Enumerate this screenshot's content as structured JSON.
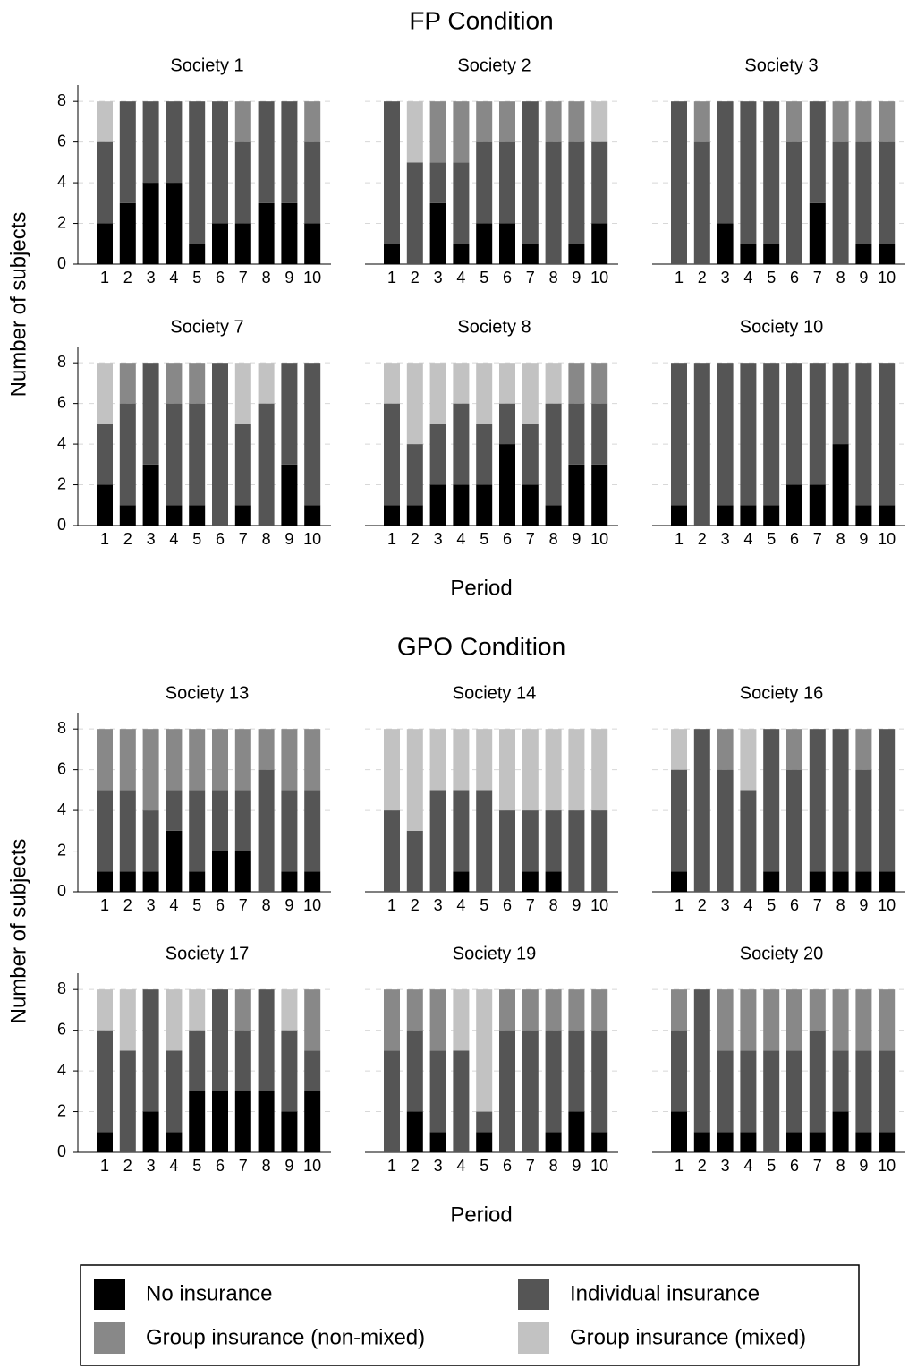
{
  "chart_data": [
    {
      "type": "bar",
      "stacked": true,
      "title": "Society 1",
      "categories": [
        1,
        2,
        3,
        4,
        5,
        6,
        7,
        8,
        9,
        10
      ],
      "series": [
        {
          "values": [
            2,
            3,
            4,
            4,
            1,
            2,
            2,
            3,
            3,
            2
          ]
        },
        {
          "values": [
            4,
            5,
            4,
            4,
            7,
            6,
            4,
            5,
            5,
            4
          ]
        },
        {
          "values": [
            0,
            0,
            0,
            0,
            0,
            0,
            2,
            0,
            0,
            2
          ]
        },
        {
          "values": [
            2,
            0,
            0,
            0,
            0,
            0,
            0,
            0,
            0,
            0
          ]
        }
      ],
      "ylim": [
        0,
        8.8
      ],
      "yticks": [
        0,
        2,
        4,
        6,
        8
      ],
      "grid": true
    },
    {
      "type": "bar",
      "stacked": true,
      "title": "Society 2",
      "categories": [
        1,
        2,
        3,
        4,
        5,
        6,
        7,
        8,
        9,
        10
      ],
      "series": [
        {
          "values": [
            1,
            0,
            3,
            1,
            2,
            2,
            1,
            0,
            1,
            2
          ]
        },
        {
          "values": [
            7,
            5,
            2,
            4,
            4,
            4,
            7,
            6,
            5,
            4
          ]
        },
        {
          "values": [
            0,
            0,
            3,
            3,
            2,
            2,
            0,
            2,
            2,
            0
          ]
        },
        {
          "values": [
            0,
            3,
            0,
            0,
            0,
            0,
            0,
            0,
            0,
            2
          ]
        }
      ],
      "ylim": [
        0,
        8.8
      ],
      "yticks": [
        0,
        2,
        4,
        6,
        8
      ],
      "grid": true
    },
    {
      "type": "bar",
      "stacked": true,
      "title": "Society 3",
      "categories": [
        1,
        2,
        3,
        4,
        5,
        6,
        7,
        8,
        9,
        10
      ],
      "series": [
        {
          "values": [
            0,
            0,
            2,
            1,
            1,
            0,
            3,
            0,
            1,
            1
          ]
        },
        {
          "values": [
            8,
            6,
            6,
            7,
            7,
            6,
            5,
            6,
            5,
            5
          ]
        },
        {
          "values": [
            0,
            2,
            0,
            0,
            0,
            2,
            0,
            2,
            2,
            2
          ]
        },
        {
          "values": [
            0,
            0,
            0,
            0,
            0,
            0,
            0,
            0,
            0,
            0
          ]
        }
      ],
      "ylim": [
        0,
        8.8
      ],
      "yticks": [
        0,
        2,
        4,
        6,
        8
      ],
      "grid": true
    },
    {
      "type": "bar",
      "stacked": true,
      "title": "Society 7",
      "categories": [
        1,
        2,
        3,
        4,
        5,
        6,
        7,
        8,
        9,
        10
      ],
      "series": [
        {
          "values": [
            2,
            1,
            3,
            1,
            1,
            0,
            1,
            0,
            3,
            1
          ]
        },
        {
          "values": [
            3,
            5,
            5,
            5,
            5,
            8,
            4,
            6,
            5,
            7
          ]
        },
        {
          "values": [
            0,
            2,
            0,
            2,
            2,
            0,
            0,
            0,
            0,
            0
          ]
        },
        {
          "values": [
            3,
            0,
            0,
            0,
            0,
            0,
            3,
            2,
            0,
            0
          ]
        }
      ],
      "ylim": [
        0,
        8.8
      ],
      "yticks": [
        0,
        2,
        4,
        6,
        8
      ],
      "grid": true
    },
    {
      "type": "bar",
      "stacked": true,
      "title": "Society 8",
      "categories": [
        1,
        2,
        3,
        4,
        5,
        6,
        7,
        8,
        9,
        10
      ],
      "series": [
        {
          "values": [
            1,
            1,
            2,
            2,
            2,
            4,
            2,
            1,
            3,
            3
          ]
        },
        {
          "values": [
            5,
            3,
            3,
            4,
            3,
            2,
            3,
            5,
            3,
            3
          ]
        },
        {
          "values": [
            0,
            0,
            0,
            0,
            0,
            0,
            0,
            0,
            2,
            2
          ]
        },
        {
          "values": [
            2,
            4,
            3,
            2,
            3,
            2,
            3,
            2,
            0,
            0
          ]
        }
      ],
      "ylim": [
        0,
        8.8
      ],
      "yticks": [
        0,
        2,
        4,
        6,
        8
      ],
      "grid": true
    },
    {
      "type": "bar",
      "stacked": true,
      "title": "Society 10",
      "categories": [
        1,
        2,
        3,
        4,
        5,
        6,
        7,
        8,
        9,
        10
      ],
      "series": [
        {
          "values": [
            1,
            0,
            1,
            1,
            1,
            2,
            2,
            4,
            1,
            1
          ]
        },
        {
          "values": [
            7,
            8,
            7,
            7,
            7,
            6,
            6,
            4,
            7,
            7
          ]
        },
        {
          "values": [
            0,
            0,
            0,
            0,
            0,
            0,
            0,
            0,
            0,
            0
          ]
        },
        {
          "values": [
            0,
            0,
            0,
            0,
            0,
            0,
            0,
            0,
            0,
            0
          ]
        }
      ],
      "ylim": [
        0,
        8.8
      ],
      "yticks": [
        0,
        2,
        4,
        6,
        8
      ],
      "grid": true
    },
    {
      "type": "bar",
      "stacked": true,
      "title": "Society 13",
      "categories": [
        1,
        2,
        3,
        4,
        5,
        6,
        7,
        8,
        9,
        10
      ],
      "series": [
        {
          "values": [
            1,
            1,
            1,
            3,
            1,
            2,
            2,
            0,
            1,
            1
          ]
        },
        {
          "values": [
            4,
            4,
            3,
            2,
            4,
            3,
            3,
            6,
            4,
            4
          ]
        },
        {
          "values": [
            3,
            3,
            4,
            3,
            3,
            3,
            3,
            2,
            3,
            3
          ]
        },
        {
          "values": [
            0,
            0,
            0,
            0,
            0,
            0,
            0,
            0,
            0,
            0
          ]
        }
      ],
      "ylim": [
        0,
        8.8
      ],
      "yticks": [
        0,
        2,
        4,
        6,
        8
      ],
      "grid": true
    },
    {
      "type": "bar",
      "stacked": true,
      "title": "Society 14",
      "categories": [
        1,
        2,
        3,
        4,
        5,
        6,
        7,
        8,
        9,
        10
      ],
      "series": [
        {
          "values": [
            0,
            0,
            0,
            1,
            0,
            0,
            1,
            1,
            0,
            0
          ]
        },
        {
          "values": [
            4,
            3,
            5,
            4,
            5,
            4,
            3,
            3,
            4,
            4
          ]
        },
        {
          "values": [
            0,
            0,
            0,
            0,
            0,
            0,
            0,
            0,
            0,
            0
          ]
        },
        {
          "values": [
            4,
            5,
            3,
            3,
            3,
            4,
            4,
            4,
            4,
            4
          ]
        }
      ],
      "ylim": [
        0,
        8.8
      ],
      "yticks": [
        0,
        2,
        4,
        6,
        8
      ],
      "grid": true
    },
    {
      "type": "bar",
      "stacked": true,
      "title": "Society 16",
      "categories": [
        1,
        2,
        3,
        4,
        5,
        6,
        7,
        8,
        9,
        10
      ],
      "series": [
        {
          "values": [
            1,
            0,
            0,
            0,
            1,
            0,
            1,
            1,
            1,
            1
          ]
        },
        {
          "values": [
            5,
            8,
            6,
            5,
            7,
            6,
            7,
            7,
            5,
            7
          ]
        },
        {
          "values": [
            0,
            0,
            2,
            0,
            0,
            2,
            0,
            0,
            2,
            0
          ]
        },
        {
          "values": [
            2,
            0,
            0,
            3,
            0,
            0,
            0,
            0,
            0,
            0
          ]
        }
      ],
      "ylim": [
        0,
        8.8
      ],
      "yticks": [
        0,
        2,
        4,
        6,
        8
      ],
      "grid": true
    },
    {
      "type": "bar",
      "stacked": true,
      "title": "Society 17",
      "categories": [
        1,
        2,
        3,
        4,
        5,
        6,
        7,
        8,
        9,
        10
      ],
      "series": [
        {
          "values": [
            1,
            0,
            2,
            1,
            3,
            3,
            3,
            3,
            2,
            3
          ]
        },
        {
          "values": [
            5,
            5,
            6,
            4,
            3,
            5,
            3,
            5,
            4,
            2
          ]
        },
        {
          "values": [
            0,
            0,
            0,
            0,
            0,
            0,
            2,
            0,
            0,
            3
          ]
        },
        {
          "values": [
            2,
            3,
            0,
            3,
            2,
            0,
            0,
            0,
            2,
            0
          ]
        }
      ],
      "ylim": [
        0,
        8.8
      ],
      "yticks": [
        0,
        2,
        4,
        6,
        8
      ],
      "grid": true
    },
    {
      "type": "bar",
      "stacked": true,
      "title": "Society 19",
      "categories": [
        1,
        2,
        3,
        4,
        5,
        6,
        7,
        8,
        9,
        10
      ],
      "series": [
        {
          "values": [
            0,
            2,
            1,
            0,
            1,
            0,
            0,
            1,
            2,
            1
          ]
        },
        {
          "values": [
            5,
            4,
            4,
            5,
            1,
            6,
            6,
            5,
            4,
            5
          ]
        },
        {
          "values": [
            3,
            2,
            3,
            0,
            0,
            2,
            2,
            2,
            2,
            2
          ]
        },
        {
          "values": [
            0,
            0,
            0,
            3,
            6,
            0,
            0,
            0,
            0,
            0
          ]
        }
      ],
      "ylim": [
        0,
        8.8
      ],
      "yticks": [
        0,
        2,
        4,
        6,
        8
      ],
      "grid": true
    },
    {
      "type": "bar",
      "stacked": true,
      "title": "Society 20",
      "categories": [
        1,
        2,
        3,
        4,
        5,
        6,
        7,
        8,
        9,
        10
      ],
      "series": [
        {
          "values": [
            2,
            1,
            1,
            1,
            0,
            1,
            1,
            2,
            1,
            1
          ]
        },
        {
          "values": [
            4,
            7,
            4,
            4,
            5,
            4,
            5,
            3,
            4,
            4
          ]
        },
        {
          "values": [
            2,
            0,
            3,
            3,
            3,
            3,
            2,
            3,
            3,
            3
          ]
        },
        {
          "values": [
            0,
            0,
            0,
            0,
            0,
            0,
            0,
            0,
            0,
            0
          ]
        }
      ],
      "ylim": [
        0,
        8.8
      ],
      "yticks": [
        0,
        2,
        4,
        6,
        8
      ],
      "grid": true
    }
  ],
  "sections": [
    {
      "title": "FP Condition",
      "x_label": "Period",
      "y_label": "Number of subjects"
    },
    {
      "title": "GPO Condition",
      "x_label": "Period",
      "y_label": "Number of subjects"
    }
  ],
  "legend": [
    {
      "name": "No insurance",
      "color": "#000000"
    },
    {
      "name": "Individual insurance",
      "color": "#555555"
    },
    {
      "name": "Group insurance (non-mixed)",
      "color": "#888888"
    },
    {
      "name": "Group insurance (mixed)",
      "color": "#c2c2c2"
    }
  ]
}
